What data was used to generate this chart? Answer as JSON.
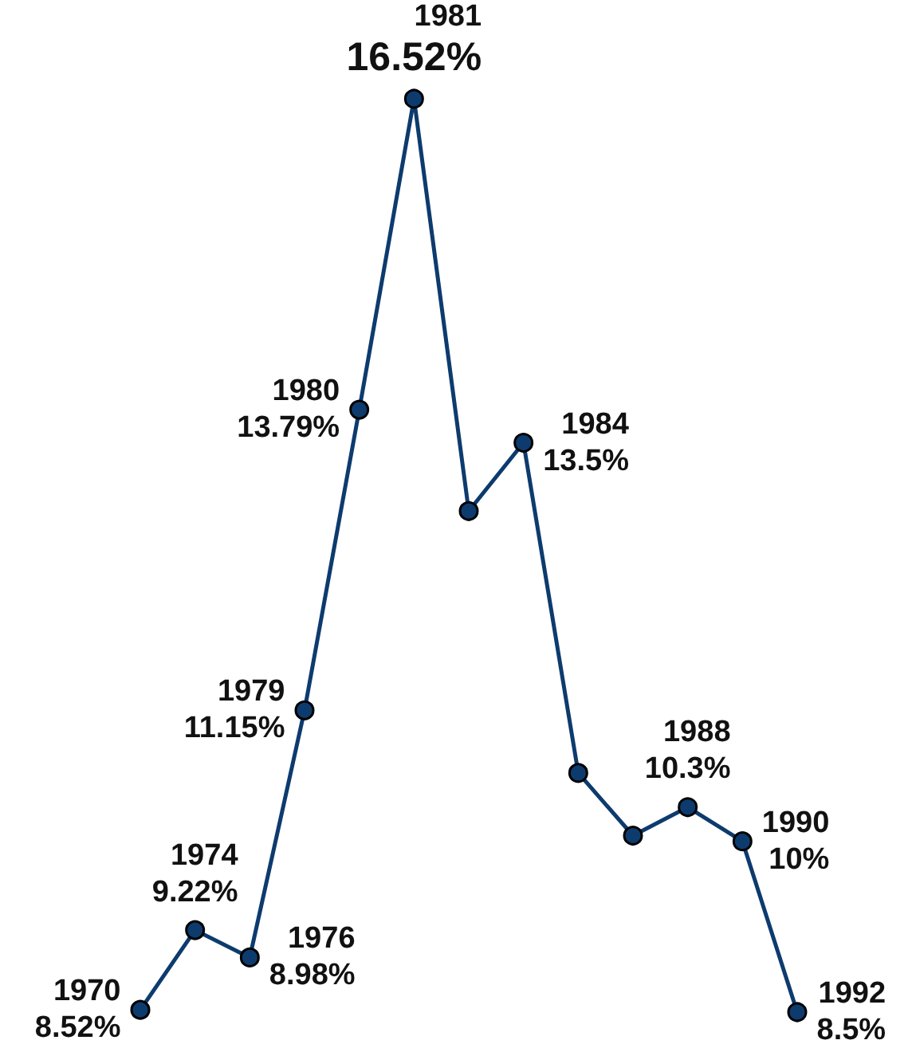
{
  "chart_data": {
    "type": "line",
    "categories": [
      null,
      null,
      null,
      null,
      null,
      null,
      null,
      null,
      null,
      null,
      null,
      null,
      null
    ],
    "series": [
      {
        "color": "#0d3b6e",
        "values": [
          8.52,
          9.22,
          8.98,
          11.15,
          13.79,
          16.52,
          12.9,
          13.5,
          10.6,
          10.05,
          10.3,
          10.0,
          8.5
        ],
        "value_labels": [
          "1970\n8.52%",
          "1974\n9.22%",
          "1976\n8.98%",
          "1979\n11.15%",
          "1980\n13.79%",
          "1981\n16.52%",
          null,
          "1984\n13.5%",
          null,
          null,
          "1988\n10.3%",
          "1990\n10%",
          "1992\n8.5%"
        ]
      }
    ],
    "tick_labels": false,
    "marker": "circle",
    "line_style": "solid"
  }
}
